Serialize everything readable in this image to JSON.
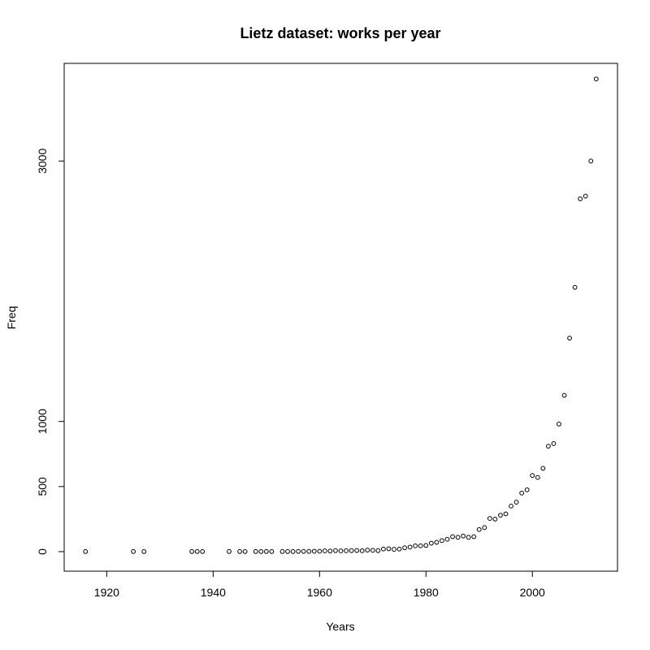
{
  "chart_data": {
    "type": "scatter",
    "title": "Lietz dataset: works per year",
    "xlabel": "Years",
    "ylabel": "Freq",
    "xlim": [
      1912,
      2016
    ],
    "ylim": [
      -150,
      3750
    ],
    "xticks": [
      1920,
      1940,
      1960,
      1980,
      2000
    ],
    "yticks": [
      0,
      500,
      1000,
      3000
    ],
    "marker": "open-circle",
    "grid": false,
    "series": [
      {
        "x": [
          1916,
          1925,
          1927,
          1936,
          1937,
          1938,
          1943,
          1945,
          1946,
          1948,
          1949,
          1950,
          1951,
          1953,
          1954,
          1955,
          1956,
          1957,
          1958,
          1959,
          1960,
          1961,
          1962,
          1963,
          1964,
          1965,
          1966,
          1967,
          1968,
          1969,
          1970,
          1971,
          1972,
          1973,
          1974,
          1975,
          1976,
          1977,
          1978,
          1979,
          1980,
          1981,
          1982,
          1983,
          1984,
          1985,
          1986,
          1987,
          1988,
          1989,
          1990,
          1991,
          1992,
          1993,
          1994,
          1995,
          1996,
          1997,
          1998,
          1999,
          2000,
          2001,
          2002,
          2003,
          2004,
          2005,
          2006,
          2007,
          2008,
          2009,
          2010,
          2011,
          2012
        ],
        "y": [
          1,
          1,
          1,
          1,
          1,
          1,
          1,
          1,
          1,
          1,
          1,
          1,
          1,
          1,
          1,
          1,
          2,
          2,
          2,
          3,
          3,
          6,
          5,
          8,
          6,
          7,
          8,
          9,
          7,
          12,
          10,
          8,
          20,
          22,
          18,
          20,
          30,
          35,
          45,
          45,
          48,
          65,
          72,
          85,
          95,
          115,
          110,
          120,
          110,
          115,
          170,
          185,
          255,
          250,
          280,
          290,
          350,
          380,
          450,
          475,
          585,
          570,
          640,
          810,
          830,
          980,
          1200,
          1640,
          2030,
          2710,
          2730,
          3000,
          3630
        ]
      }
    ]
  }
}
